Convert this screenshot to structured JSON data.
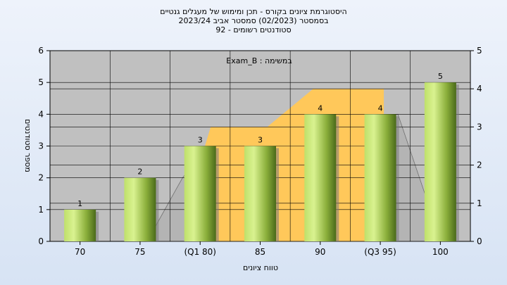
{
  "chart_data": {
    "type": "bar",
    "title_lines": [
      "היסטוגרמת ציונים בקורס - תכן ומימוש של מעגלים גנטיים",
      "בסמסטר  (02/2023)  סמסטר אביב 2023/24",
      "סטודנטים רשומים - 92"
    ],
    "annotation": "Exam_B : במשימה",
    "xlabel": "טווח ציונים",
    "ylabel": "מספר סטודנטים",
    "categories": [
      "70",
      "75",
      "(Q1 80)",
      "85",
      "90",
      "(Q3 95)",
      "100"
    ],
    "values": [
      1,
      2,
      3,
      3,
      4,
      4,
      5
    ],
    "data_labels": [
      "1",
      "2",
      "3",
      "3",
      "4",
      "4",
      "5"
    ],
    "ylim": [
      0,
      6
    ],
    "yticks": [
      "0",
      "1",
      "2",
      "3",
      "4",
      "5",
      "6"
    ],
    "y2lim": [
      0,
      5
    ],
    "y2ticks": [
      "0",
      "1",
      "2",
      "3",
      "4",
      "5"
    ],
    "grid": true,
    "colors": {
      "plot_bg": "#c0c0c0",
      "bar_light": "#d6f08a",
      "bar_dark": "#4a6a1a",
      "quartile_band": "#ffc85a",
      "range_band": "#b4b4b4"
    }
  }
}
